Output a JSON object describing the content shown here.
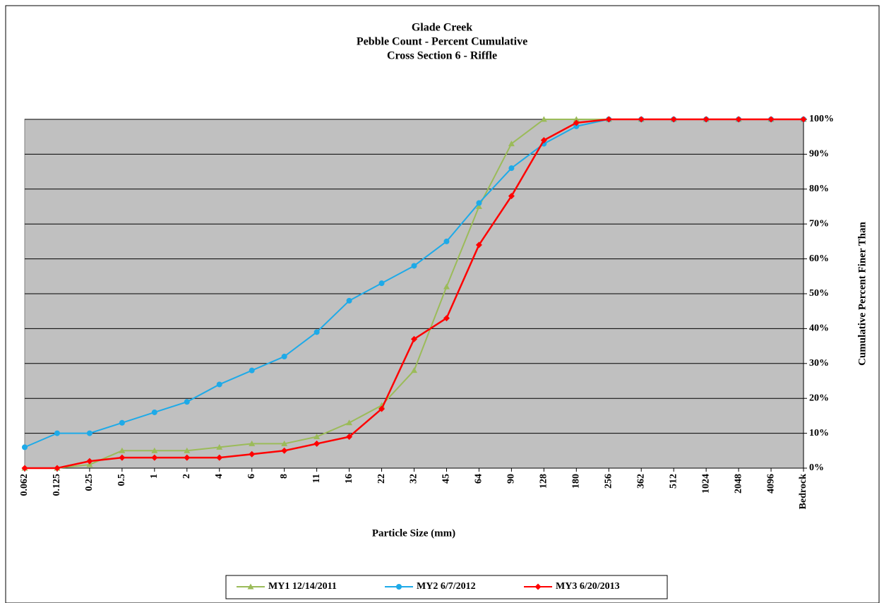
{
  "chart_data": {
    "type": "line",
    "title": [
      "Glade Creek",
      "Pebble Count - Percent Cumulative",
      "Cross Section 6 - Riffle"
    ],
    "x_label": "Particle Size (mm)",
    "y_label": "Cumulative Percent Finer Than",
    "categories": [
      "0.062",
      "0.125",
      "0.25",
      "0.5",
      "1",
      "2",
      "4",
      "6",
      "8",
      "11",
      "16",
      "22",
      "32",
      "45",
      "64",
      "90",
      "128",
      "180",
      "256",
      "362",
      "512",
      "1024",
      "2048",
      "4096",
      "Bedrock"
    ],
    "series": [
      {
        "name": "MY1 12/14/2011",
        "color": "#9bbb59",
        "marker": "triangle",
        "values": [
          0,
          0,
          1,
          5,
          5,
          5,
          6,
          7,
          7,
          9,
          13,
          18,
          28,
          52,
          75,
          93,
          100,
          100,
          100,
          100,
          100,
          100,
          100,
          100,
          100
        ]
      },
      {
        "name": "MY2 6/7/2012",
        "color": "#1eaae8",
        "marker": "circle",
        "values": [
          6,
          10,
          10,
          13,
          16,
          19,
          24,
          28,
          32,
          39,
          48,
          53,
          58,
          65,
          76,
          86,
          93,
          98,
          100,
          100,
          100,
          100,
          100,
          100,
          100
        ]
      },
      {
        "name": "MY3 6/20/2013",
        "color": "#ff0000",
        "marker": "diamond",
        "values": [
          0,
          0,
          2,
          3,
          3,
          3,
          3,
          4,
          5,
          7,
          9,
          17,
          37,
          43,
          64,
          78,
          94,
          99,
          100,
          100,
          100,
          100,
          100,
          100,
          100
        ]
      }
    ],
    "ylim": [
      0,
      100
    ],
    "yticks": [
      {
        "value": 0,
        "label": "0%"
      },
      {
        "value": 10,
        "label": "10%"
      },
      {
        "value": 20,
        "label": "20%"
      },
      {
        "value": 30,
        "label": "30%"
      },
      {
        "value": 40,
        "label": "40%"
      },
      {
        "value": 50,
        "label": "50%"
      },
      {
        "value": 60,
        "label": "60%"
      },
      {
        "value": 70,
        "label": "70%"
      },
      {
        "value": 80,
        "label": "80%"
      },
      {
        "value": 90,
        "label": "90%"
      },
      {
        "value": 100,
        "label": "100%"
      }
    ],
    "grid": true,
    "y_axis_side": "right",
    "legend": "bottom",
    "plot_background": "#c0c0c0"
  }
}
